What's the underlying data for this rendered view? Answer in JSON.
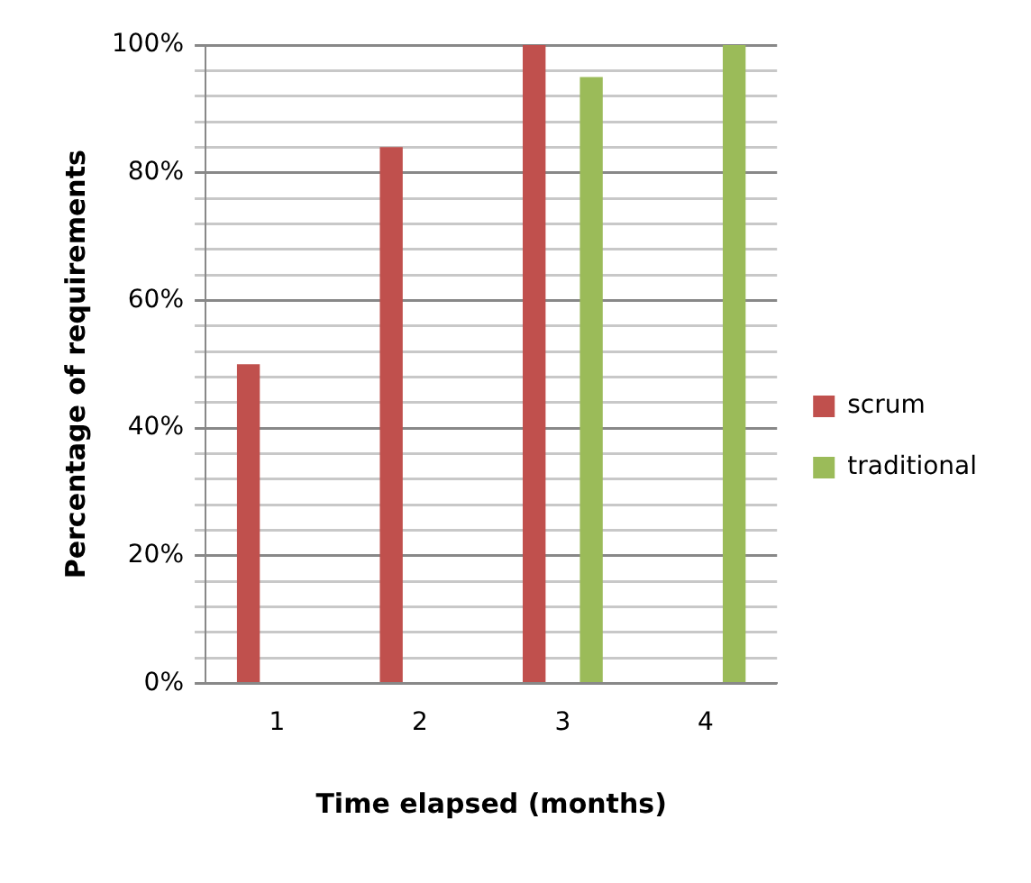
{
  "chart_data": {
    "type": "bar",
    "xlabel": "Time elapsed (months)",
    "ylabel": "Percentage of requirements",
    "categories": [
      "1",
      "2",
      "3",
      "4"
    ],
    "series": [
      {
        "name": "scrum",
        "color": "#c0504d",
        "values": [
          50,
          84,
          100,
          null
        ]
      },
      {
        "name": "traditional",
        "color": "#9bbb59",
        "values": [
          null,
          null,
          95,
          100
        ]
      }
    ],
    "ylim": [
      0,
      100
    ],
    "yticks": [
      {
        "value": 0,
        "label": "0%"
      },
      {
        "value": 4,
        "label": null
      },
      {
        "value": 8,
        "label": null
      },
      {
        "value": 12,
        "label": null
      },
      {
        "value": 16,
        "label": null
      },
      {
        "value": 20,
        "label": "20%"
      },
      {
        "value": 24,
        "label": null
      },
      {
        "value": 28,
        "label": null
      },
      {
        "value": 32,
        "label": null
      },
      {
        "value": 36,
        "label": null
      },
      {
        "value": 40,
        "label": "40%"
      },
      {
        "value": 44,
        "label": null
      },
      {
        "value": 48,
        "label": null
      },
      {
        "value": 52,
        "label": null
      },
      {
        "value": 56,
        "label": null
      },
      {
        "value": 60,
        "label": "60%"
      },
      {
        "value": 64,
        "label": null
      },
      {
        "value": 68,
        "label": null
      },
      {
        "value": 72,
        "label": null
      },
      {
        "value": 76,
        "label": null
      },
      {
        "value": 80,
        "label": "80%"
      },
      {
        "value": 84,
        "label": null
      },
      {
        "value": 88,
        "label": null
      },
      {
        "value": 92,
        "label": null
      },
      {
        "value": 96,
        "label": null
      },
      {
        "value": 100,
        "label": "100%"
      }
    ],
    "grid": "y",
    "legend": "right"
  }
}
